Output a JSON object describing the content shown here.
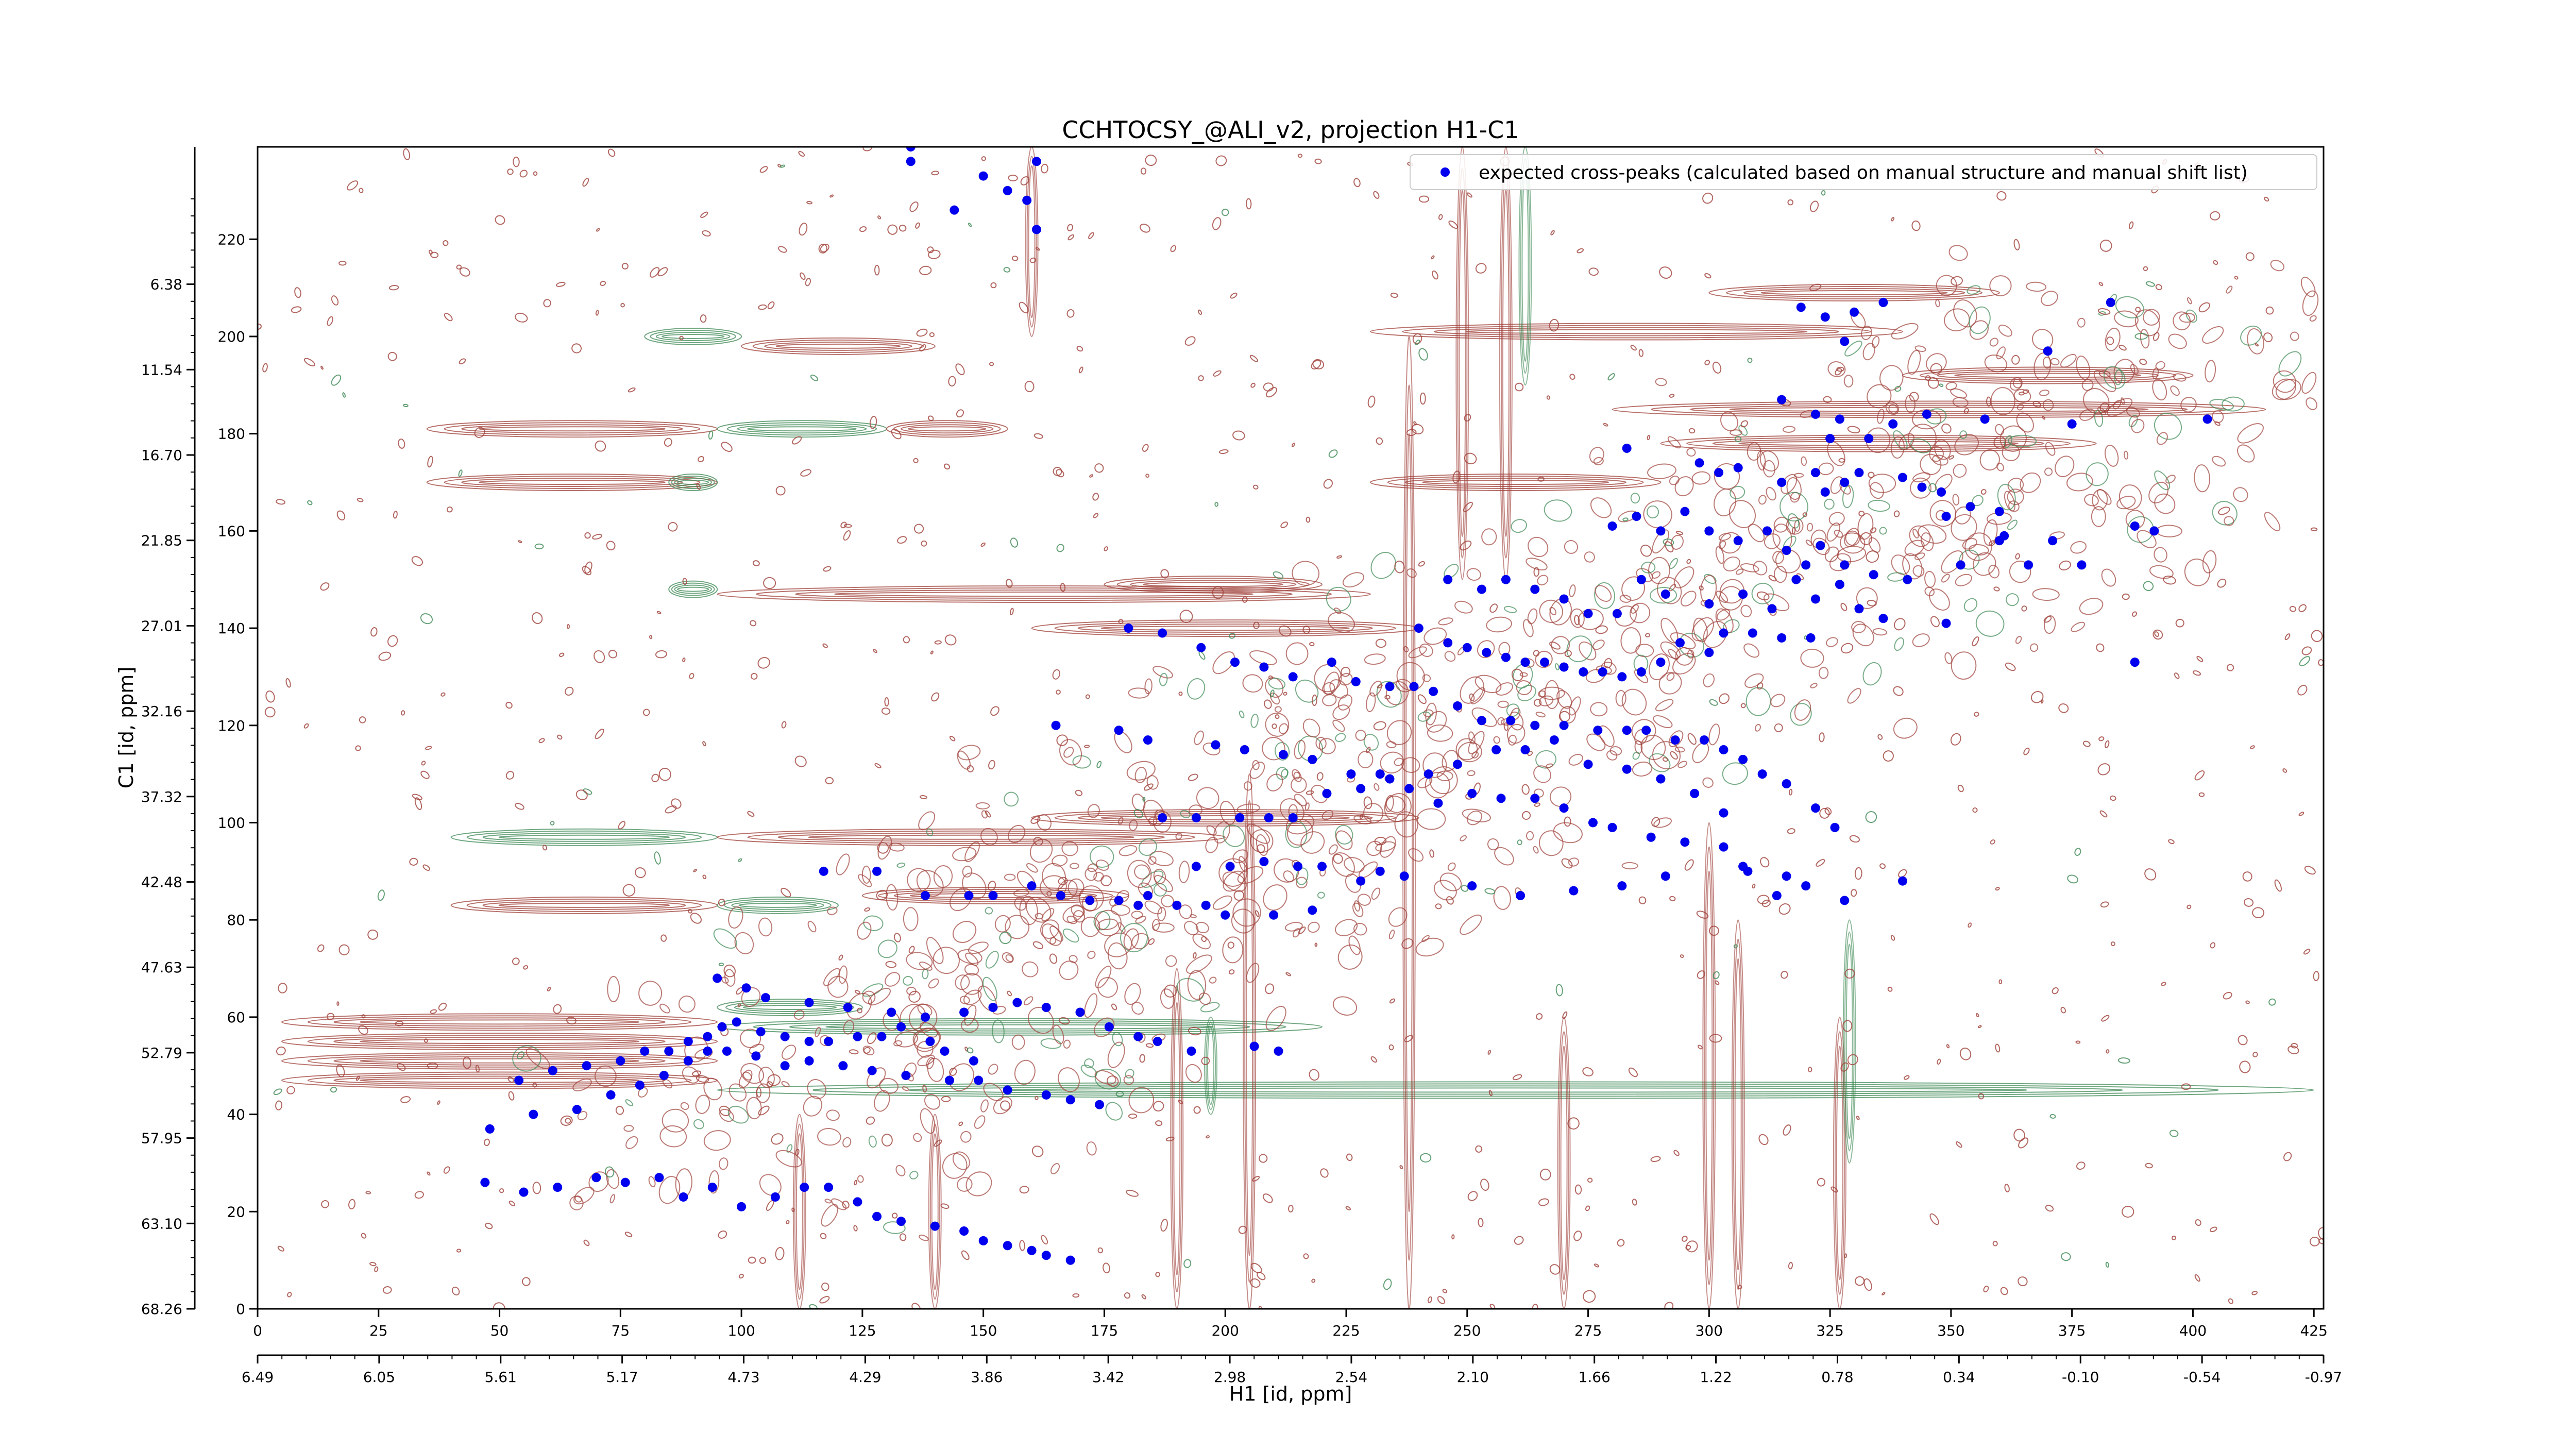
{
  "chart_data": {
    "type": "scatter",
    "title": "CCHTOCSY_@ALI_v2, projection H1-C1",
    "xlabel": "H1 [id, ppm]",
    "ylabel": "C1 [id, ppm]",
    "xlim": [
      0,
      427
    ],
    "ylim": [
      0,
      239
    ],
    "x_ticks": [
      0,
      25,
      50,
      75,
      100,
      125,
      150,
      175,
      200,
      225,
      250,
      275,
      300,
      325,
      350,
      375,
      400,
      425
    ],
    "x_tick_labels": [
      "0",
      "25",
      "50",
      "75",
      "100",
      "125",
      "150",
      "175",
      "200",
      "225",
      "250",
      "275",
      "300",
      "325",
      "350",
      "375",
      "400",
      "425"
    ],
    "y_ticks": [
      0,
      20,
      40,
      60,
      80,
      100,
      120,
      140,
      160,
      180,
      200,
      220,
      240
    ],
    "y_tick_labels": [
      "0",
      "20",
      "40",
      "60",
      "80",
      "100",
      "120",
      "140",
      "160",
      "180",
      "200",
      "220",
      "240"
    ],
    "x_ppm_ticks": [
      "6.49",
      "6.05",
      "5.61",
      "5.17",
      "4.73",
      "4.29",
      "3.86",
      "3.42",
      "2.98",
      "2.54",
      "2.10",
      "1.66",
      "1.22",
      "0.78",
      "0.34",
      "-0.10",
      "-0.54",
      "-0.97"
    ],
    "y_ppm_ticks": [
      "68.26",
      "63.10",
      "57.95",
      "52.79",
      "47.63",
      "42.48",
      "37.32",
      "32.16",
      "27.01",
      "21.85",
      "16.70",
      "11.54",
      "6.38"
    ],
    "legend": {
      "position": "top-right",
      "entries": [
        "expected cross-peaks (calculated based on manual structure and manual shift list)"
      ]
    },
    "grid": false,
    "colors": {
      "marker": "#0000ee",
      "contour_positive": "#a0413a",
      "contour_negative": "#3f8a55"
    },
    "series": [
      {
        "name": "expected cross-peaks (calculated based on manual structure and manual shift list)",
        "points": [
          [
            135,
            239
          ],
          [
            135,
            236
          ],
          [
            150,
            233
          ],
          [
            155,
            230
          ],
          [
            161,
            236
          ],
          [
            144,
            226
          ],
          [
            159,
            228
          ],
          [
            161,
            222
          ],
          [
            319,
            206
          ],
          [
            324,
            204
          ],
          [
            330,
            205
          ],
          [
            328,
            199
          ],
          [
            336,
            207
          ],
          [
            383,
            207
          ],
          [
            370,
            197
          ],
          [
            315,
            187
          ],
          [
            322,
            184
          ],
          [
            327,
            183
          ],
          [
            325,
            179
          ],
          [
            333,
            179
          ],
          [
            345,
            184
          ],
          [
            338,
            182
          ],
          [
            357,
            183
          ],
          [
            375,
            182
          ],
          [
            403,
            183
          ],
          [
            283,
            177
          ],
          [
            298,
            174
          ],
          [
            302,
            172
          ],
          [
            306,
            173
          ],
          [
            315,
            170
          ],
          [
            322,
            172
          ],
          [
            324,
            168
          ],
          [
            328,
            170
          ],
          [
            331,
            172
          ],
          [
            340,
            171
          ],
          [
            344,
            169
          ],
          [
            348,
            168
          ],
          [
            349,
            163
          ],
          [
            354,
            165
          ],
          [
            360,
            164
          ],
          [
            361,
            159
          ],
          [
            360,
            158
          ],
          [
            371,
            158
          ],
          [
            392,
            160
          ],
          [
            280,
            161
          ],
          [
            285,
            163
          ],
          [
            290,
            160
          ],
          [
            295,
            164
          ],
          [
            300,
            160
          ],
          [
            306,
            158
          ],
          [
            312,
            160
          ],
          [
            316,
            156
          ],
          [
            320,
            153
          ],
          [
            323,
            157
          ],
          [
            328,
            153
          ],
          [
            334,
            151
          ],
          [
            341,
            150
          ],
          [
            352,
            153
          ],
          [
            366,
            153
          ],
          [
            377,
            153
          ],
          [
            388,
            161
          ],
          [
            246,
            150
          ],
          [
            253,
            148
          ],
          [
            258,
            150
          ],
          [
            264,
            148
          ],
          [
            270,
            146
          ],
          [
            275,
            143
          ],
          [
            281,
            143
          ],
          [
            286,
            150
          ],
          [
            291,
            147
          ],
          [
            300,
            145
          ],
          [
            307,
            147
          ],
          [
            313,
            144
          ],
          [
            318,
            150
          ],
          [
            322,
            146
          ],
          [
            327,
            149
          ],
          [
            331,
            144
          ],
          [
            336,
            142
          ],
          [
            349,
            141
          ],
          [
            240,
            140
          ],
          [
            246,
            137
          ],
          [
            250,
            136
          ],
          [
            254,
            135
          ],
          [
            258,
            134
          ],
          [
            262,
            133
          ],
          [
            266,
            133
          ],
          [
            270,
            132
          ],
          [
            274,
            131
          ],
          [
            278,
            131
          ],
          [
            282,
            130
          ],
          [
            286,
            131
          ],
          [
            290,
            133
          ],
          [
            294,
            137
          ],
          [
            300,
            135
          ],
          [
            303,
            139
          ],
          [
            309,
            139
          ],
          [
            315,
            138
          ],
          [
            321,
            138
          ],
          [
            388,
            133
          ],
          [
            180,
            140
          ],
          [
            187,
            139
          ],
          [
            195,
            136
          ],
          [
            202,
            133
          ],
          [
            208,
            132
          ],
          [
            214,
            130
          ],
          [
            222,
            133
          ],
          [
            227,
            129
          ],
          [
            234,
            128
          ],
          [
            239,
            128
          ],
          [
            243,
            127
          ],
          [
            248,
            124
          ],
          [
            253,
            121
          ],
          [
            259,
            121
          ],
          [
            264,
            120
          ],
          [
            270,
            120
          ],
          [
            277,
            119
          ],
          [
            283,
            119
          ],
          [
            287,
            119
          ],
          [
            293,
            117
          ],
          [
            299,
            117
          ],
          [
            303,
            115
          ],
          [
            307,
            113
          ],
          [
            311,
            110
          ],
          [
            316,
            108
          ],
          [
            322,
            103
          ],
          [
            326,
            99
          ],
          [
            165,
            120
          ],
          [
            178,
            119
          ],
          [
            184,
            117
          ],
          [
            198,
            116
          ],
          [
            204,
            115
          ],
          [
            212,
            114
          ],
          [
            218,
            113
          ],
          [
            226,
            110
          ],
          [
            232,
            110
          ],
          [
            238,
            107
          ],
          [
            244,
            104
          ],
          [
            251,
            106
          ],
          [
            257,
            105
          ],
          [
            264,
            105
          ],
          [
            270,
            103
          ],
          [
            276,
            100
          ],
          [
            280,
            99
          ],
          [
            288,
            97
          ],
          [
            295,
            96
          ],
          [
            303,
            95
          ],
          [
            307,
            91
          ],
          [
            314,
            85
          ],
          [
            320,
            87
          ],
          [
            328,
            84
          ],
          [
            340,
            88
          ],
          [
            187,
            101
          ],
          [
            194,
            101
          ],
          [
            203,
            101
          ],
          [
            209,
            101
          ],
          [
            214,
            101
          ],
          [
            221,
            106
          ],
          [
            228,
            107
          ],
          [
            234,
            109
          ],
          [
            242,
            110
          ],
          [
            248,
            112
          ],
          [
            256,
            115
          ],
          [
            262,
            115
          ],
          [
            268,
            117
          ],
          [
            275,
            112
          ],
          [
            283,
            111
          ],
          [
            290,
            109
          ],
          [
            297,
            106
          ],
          [
            303,
            102
          ],
          [
            194,
            91
          ],
          [
            201,
            91
          ],
          [
            208,
            92
          ],
          [
            215,
            91
          ],
          [
            220,
            91
          ],
          [
            228,
            88
          ],
          [
            232,
            90
          ],
          [
            237,
            89
          ],
          [
            251,
            87
          ],
          [
            261,
            85
          ],
          [
            272,
            86
          ],
          [
            282,
            87
          ],
          [
            291,
            89
          ],
          [
            308,
            90
          ],
          [
            316,
            89
          ],
          [
            117,
            90
          ],
          [
            128,
            90
          ],
          [
            138,
            85
          ],
          [
            147,
            85
          ],
          [
            152,
            85
          ],
          [
            160,
            87
          ],
          [
            166,
            85
          ],
          [
            172,
            84
          ],
          [
            178,
            84
          ],
          [
            182,
            83
          ],
          [
            184,
            85
          ],
          [
            190,
            83
          ],
          [
            196,
            83
          ],
          [
            200,
            81
          ],
          [
            210,
            81
          ],
          [
            218,
            82
          ],
          [
            95,
            68
          ],
          [
            101,
            66
          ],
          [
            105,
            64
          ],
          [
            114,
            63
          ],
          [
            122,
            62
          ],
          [
            131,
            61
          ],
          [
            138,
            60
          ],
          [
            146,
            61
          ],
          [
            152,
            62
          ],
          [
            157,
            63
          ],
          [
            163,
            62
          ],
          [
            170,
            61
          ],
          [
            176,
            58
          ],
          [
            182,
            56
          ],
          [
            186,
            55
          ],
          [
            193,
            53
          ],
          [
            206,
            54
          ],
          [
            211,
            53
          ],
          [
            48,
            37
          ],
          [
            57,
            40
          ],
          [
            66,
            41
          ],
          [
            73,
            44
          ],
          [
            79,
            46
          ],
          [
            84,
            48
          ],
          [
            89,
            51
          ],
          [
            93,
            53
          ],
          [
            97,
            53
          ],
          [
            103,
            52
          ],
          [
            109,
            50
          ],
          [
            114,
            51
          ],
          [
            121,
            50
          ],
          [
            127,
            49
          ],
          [
            134,
            48
          ],
          [
            143,
            47
          ],
          [
            149,
            47
          ],
          [
            155,
            45
          ],
          [
            163,
            44
          ],
          [
            168,
            43
          ],
          [
            174,
            42
          ],
          [
            54,
            47
          ],
          [
            61,
            49
          ],
          [
            68,
            50
          ],
          [
            75,
            51
          ],
          [
            80,
            53
          ],
          [
            85,
            53
          ],
          [
            89,
            55
          ],
          [
            93,
            56
          ],
          [
            96,
            58
          ],
          [
            99,
            59
          ],
          [
            104,
            57
          ],
          [
            109,
            56
          ],
          [
            114,
            55
          ],
          [
            118,
            55
          ],
          [
            124,
            56
          ],
          [
            129,
            56
          ],
          [
            133,
            58
          ],
          [
            139,
            55
          ],
          [
            142,
            53
          ],
          [
            148,
            51
          ],
          [
            47,
            26
          ],
          [
            55,
            24
          ],
          [
            62,
            25
          ],
          [
            70,
            27
          ],
          [
            76,
            26
          ],
          [
            83,
            27
          ],
          [
            88,
            23
          ],
          [
            94,
            25
          ],
          [
            100,
            21
          ],
          [
            107,
            23
          ],
          [
            113,
            25
          ],
          [
            118,
            25
          ],
          [
            124,
            22
          ],
          [
            128,
            19
          ],
          [
            133,
            18
          ],
          [
            140,
            17
          ],
          [
            146,
            16
          ],
          [
            150,
            14
          ],
          [
            155,
            13
          ],
          [
            160,
            12
          ],
          [
            163,
            11
          ],
          [
            168,
            10
          ]
        ]
      }
    ]
  }
}
